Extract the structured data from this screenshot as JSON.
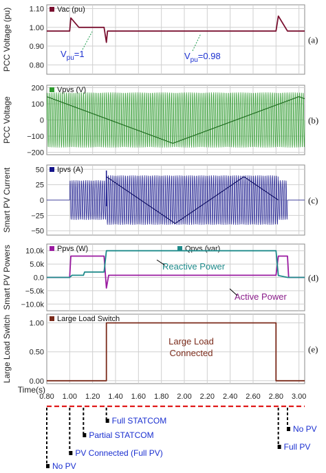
{
  "panels": [
    {
      "id": "a",
      "label": "(a)",
      "ylabel": "PCC Voltage (pu)",
      "legend": [
        {
          "name": "Vac (pu)",
          "color": "#7a1030"
        }
      ],
      "yticks": [
        "1.10",
        "1.00",
        "0.90",
        "0.80"
      ],
      "ylim": [
        0.75,
        1.12
      ],
      "annotations": [
        {
          "text": "V",
          "sub": "pu",
          "suffix": "=1",
          "color": "#1a2fd0"
        },
        {
          "text": "V",
          "sub": "pu",
          "suffix": "=0.98",
          "color": "#1a2fd0"
        }
      ]
    },
    {
      "id": "b",
      "label": "(b)",
      "ylabel": "PCC Voltage",
      "legend": [
        {
          "name": "Vpvs (V)",
          "color": "#2e9a2e"
        }
      ],
      "yticks": [
        "200",
        "100",
        "0",
        "−100",
        "−200"
      ],
      "ylim": [
        -215,
        215
      ]
    },
    {
      "id": "c",
      "label": "(c)",
      "ylabel": "Smart PV Current",
      "legend": [
        {
          "name": "Ipvs (A)",
          "color": "#14148a"
        }
      ],
      "yticks": [
        "50",
        "25",
        "0",
        "−25",
        "−50"
      ],
      "ylim": [
        -57,
        57
      ]
    },
    {
      "id": "d",
      "label": "(d)",
      "ylabel": "Smart PV Powers",
      "legend": [
        {
          "name": "Ppvs (W)",
          "color": "#9a1aa0"
        },
        {
          "name": "Qpvs (var)",
          "color": "#1e8a8a"
        }
      ],
      "yticks": [
        "10.0k",
        "5.0k",
        "0.0",
        "−5.0k",
        "−10.0k"
      ],
      "ylim": [
        -12500,
        12500
      ],
      "annotations": [
        {
          "text": "Reactive Power",
          "color": "#1e8a8a"
        },
        {
          "text": "Active Power",
          "color": "#8a1c8a"
        }
      ]
    },
    {
      "id": "e",
      "label": "(e)",
      "ylabel": "Large Load Switch",
      "legend": [
        {
          "name": "Large Load Switch",
          "color": "#7a2a1a"
        }
      ],
      "yticks": [
        "1.00",
        "0.50",
        "0.00"
      ],
      "ylim": [
        -0.05,
        1.15
      ],
      "annotations": [
        {
          "text": "Large Load",
          "color": "#7a2a1a"
        },
        {
          "text": "Connected",
          "color": "#7a2a1a"
        }
      ]
    }
  ],
  "xaxis": {
    "label": "Time(s)",
    "ticks": [
      "0.80",
      "1.00",
      "1.20",
      "1.40",
      "1.60",
      "1.80",
      "2.00",
      "2.20",
      "2.40",
      "2.60",
      "2.80",
      "3.00"
    ],
    "xlim": [
      0.8,
      3.05
    ]
  },
  "timeline": {
    "events": [
      {
        "label": "No PV",
        "t": 0.8
      },
      {
        "label": "PV Connected (Full PV)",
        "t": 1.0
      },
      {
        "label": "Partial STATCOM",
        "t": 1.12
      },
      {
        "label": "Full STATCOM",
        "t": 1.32
      },
      {
        "label": "Full PV",
        "t": 2.82
      },
      {
        "label": "No PV",
        "t": 2.9
      }
    ]
  },
  "chart_data": [
    {
      "type": "line",
      "title": "",
      "ylabel": "PCC Voltage (pu)",
      "xlabel": "Time(s)",
      "series": [
        {
          "name": "Vac (pu)",
          "color": "#7a1030",
          "x": [
            0.8,
            1.0,
            1.01,
            1.08,
            1.15,
            1.3,
            1.32,
            1.33,
            2.8,
            2.82,
            2.9,
            3.05
          ],
          "y": [
            0.98,
            0.98,
            1.05,
            1.0,
            1.0,
            1.0,
            0.92,
            0.98,
            0.98,
            1.06,
            0.98,
            0.98
          ]
        }
      ],
      "ylim": [
        0.75,
        1.12
      ]
    },
    {
      "type": "line",
      "title": "",
      "ylabel": "PCC Voltage",
      "xlabel": "Time(s)",
      "series": [
        {
          "name": "Vpvs (V)",
          "color": "#2e9a2e",
          "amplitude": 170,
          "x_range": [
            0.8,
            3.05
          ]
        }
      ],
      "ylim": [
        -215,
        215
      ]
    },
    {
      "type": "line",
      "title": "",
      "ylabel": "Smart PV Current",
      "xlabel": "Time(s)",
      "series": [
        {
          "name": "Ipvs (A)",
          "color": "#14148a",
          "segments": [
            {
              "x": [
                0.8,
                1.0
              ],
              "amplitude": 0
            },
            {
              "x": [
                1.0,
                1.32
              ],
              "amplitude": 32
            },
            {
              "x": [
                1.32,
                2.82
              ],
              "amplitude": 40
            },
            {
              "x": [
                2.82,
                2.9
              ],
              "amplitude": 32
            },
            {
              "x": [
                2.9,
                3.05
              ],
              "amplitude": 0
            }
          ]
        }
      ],
      "ylim": [
        -57,
        57
      ]
    },
    {
      "type": "line",
      "title": "",
      "ylabel": "Smart PV Powers",
      "xlabel": "Time(s)",
      "series": [
        {
          "name": "Ppvs (W)",
          "color": "#9a1aa0",
          "x": [
            0.8,
            1.0,
            1.01,
            1.3,
            1.32,
            1.34,
            2.8,
            2.82,
            2.9,
            2.91,
            3.05
          ],
          "y": [
            0,
            0,
            8000,
            8000,
            -4000,
            800,
            800,
            8000,
            8000,
            0,
            0
          ]
        },
        {
          "name": "Qpvs (var)",
          "color": "#1e8a8a",
          "x": [
            0.8,
            1.0,
            1.02,
            1.12,
            1.13,
            1.3,
            1.32,
            1.33,
            2.8,
            2.82,
            2.9,
            3.05
          ],
          "y": [
            0,
            0,
            800,
            800,
            2000,
            2000,
            10000,
            10000,
            10000,
            700,
            0,
            0
          ]
        }
      ],
      "ylim": [
        -12500,
        12500
      ]
    },
    {
      "type": "line",
      "title": "",
      "ylabel": "Large Load Switch",
      "xlabel": "Time(s)",
      "series": [
        {
          "name": "Large Load Switch",
          "color": "#7a2a1a",
          "x": [
            0.8,
            1.32,
            1.32,
            2.8,
            2.8,
            3.05
          ],
          "y": [
            0,
            0,
            1,
            1,
            0,
            0
          ]
        }
      ],
      "ylim": [
        -0.05,
        1.15
      ]
    }
  ]
}
